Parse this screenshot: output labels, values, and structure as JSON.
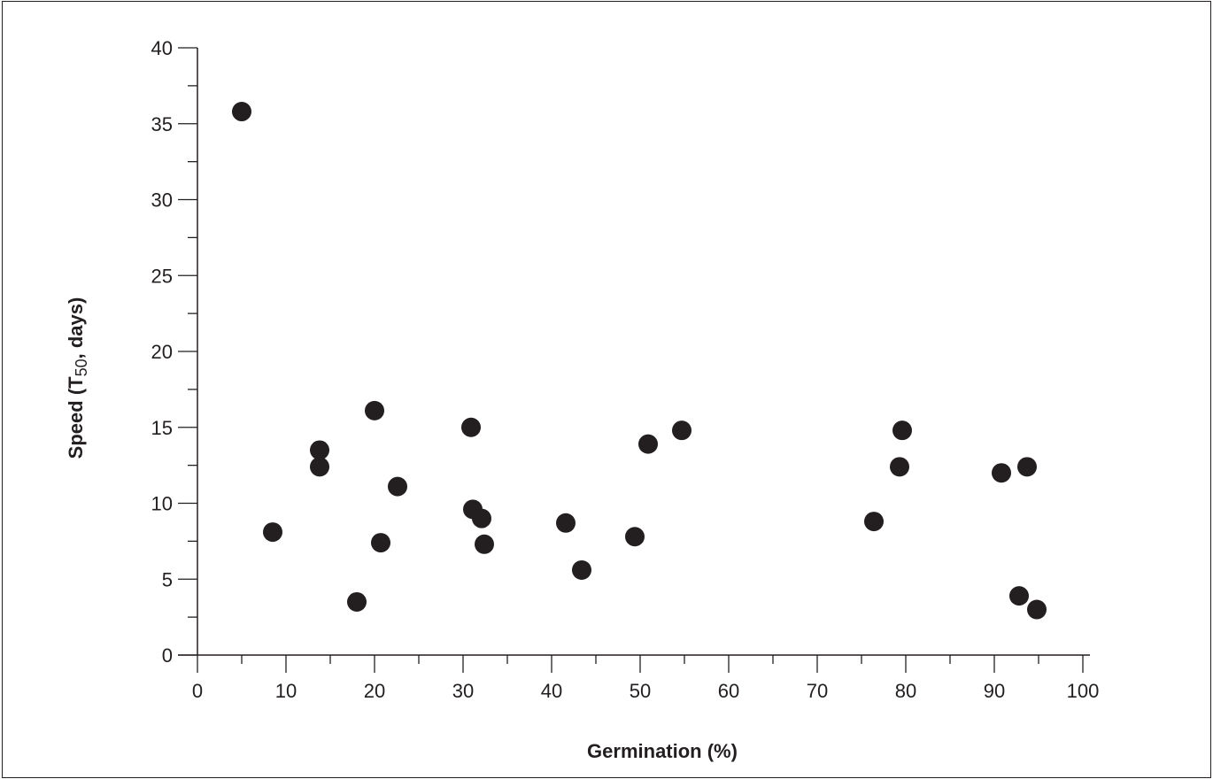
{
  "chart_data": {
    "type": "scatter",
    "title": "",
    "xlabel": "Germination (%)",
    "ylabel": {
      "prefix": "Speed (T",
      "subscript": "50",
      "suffix": ", days)"
    },
    "xlim": [
      0,
      100
    ],
    "ylim": [
      0,
      40
    ],
    "x_major_ticks": [
      0,
      10,
      20,
      30,
      40,
      50,
      60,
      70,
      80,
      90,
      100
    ],
    "y_major_ticks": [
      0,
      5,
      10,
      15,
      20,
      25,
      30,
      35,
      40
    ],
    "grid": false,
    "marker_color": "#231f20",
    "axis_color": "#231f20",
    "points": [
      {
        "x": 5.0,
        "y": 35.8
      },
      {
        "x": 8.5,
        "y": 8.1
      },
      {
        "x": 13.8,
        "y": 13.5
      },
      {
        "x": 13.8,
        "y": 12.4
      },
      {
        "x": 18.0,
        "y": 3.5
      },
      {
        "x": 20.0,
        "y": 16.1
      },
      {
        "x": 20.7,
        "y": 7.4
      },
      {
        "x": 22.6,
        "y": 11.1
      },
      {
        "x": 30.9,
        "y": 15.0
      },
      {
        "x": 31.1,
        "y": 9.6
      },
      {
        "x": 32.1,
        "y": 9.0
      },
      {
        "x": 32.4,
        "y": 7.3
      },
      {
        "x": 41.6,
        "y": 8.7
      },
      {
        "x": 43.4,
        "y": 5.6
      },
      {
        "x": 49.4,
        "y": 7.8
      },
      {
        "x": 50.9,
        "y": 13.9
      },
      {
        "x": 54.7,
        "y": 14.8
      },
      {
        "x": 76.4,
        "y": 8.8
      },
      {
        "x": 79.3,
        "y": 12.4
      },
      {
        "x": 79.6,
        "y": 14.8
      },
      {
        "x": 90.8,
        "y": 12.0
      },
      {
        "x": 92.8,
        "y": 3.9
      },
      {
        "x": 93.7,
        "y": 12.4
      },
      {
        "x": 94.8,
        "y": 3.0
      }
    ]
  }
}
